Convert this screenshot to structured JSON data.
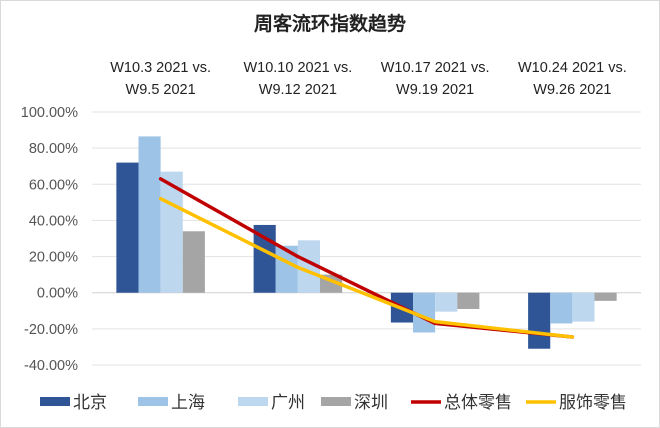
{
  "chart_data": {
    "type": "bar",
    "title": "周客流环指数趋势",
    "categories": [
      [
        "W10.3 2021 vs.",
        "W9.5 2021"
      ],
      [
        "W10.10 2021 vs.",
        "W9.12 2021"
      ],
      [
        "W10.17 2021 vs.",
        "W9.19 2021"
      ],
      [
        "W10.24 2021 vs.",
        "W9.26 2021"
      ]
    ],
    "category_axis_position": "top",
    "xlabel": "",
    "ylabel": "",
    "ylim": [
      -40,
      100
    ],
    "yticks": [
      100,
      80,
      60,
      40,
      20,
      0,
      -20,
      -40
    ],
    "ytick_labels": [
      "100.00%",
      "80.00%",
      "60.00%",
      "40.00%",
      "20.00%",
      "0.00%",
      "-20.00%",
      "-40.00%"
    ],
    "grid": true,
    "legend_position": "bottom",
    "series": [
      {
        "name": "北京",
        "kind": "bar",
        "color": "#2F5597",
        "values": [
          72,
          37.5,
          -16.5,
          -31
        ]
      },
      {
        "name": "上海",
        "kind": "bar",
        "color": "#9DC3E6",
        "values": [
          86.5,
          26,
          -22,
          -17
        ]
      },
      {
        "name": "广州",
        "kind": "bar",
        "color": "#BDD7EE",
        "values": [
          67,
          29,
          -10.5,
          -16
        ]
      },
      {
        "name": "深圳",
        "kind": "bar",
        "color": "#A5A5A5",
        "values": [
          34,
          10,
          -9,
          -4.5
        ]
      },
      {
        "name": "总体零售",
        "kind": "line",
        "color": "#C00000",
        "values": [
          63,
          20,
          -17,
          -24.5
        ]
      },
      {
        "name": "服饰零售",
        "kind": "line",
        "color": "#FFC000",
        "values": [
          52,
          14,
          -16,
          -24.5
        ]
      }
    ]
  }
}
